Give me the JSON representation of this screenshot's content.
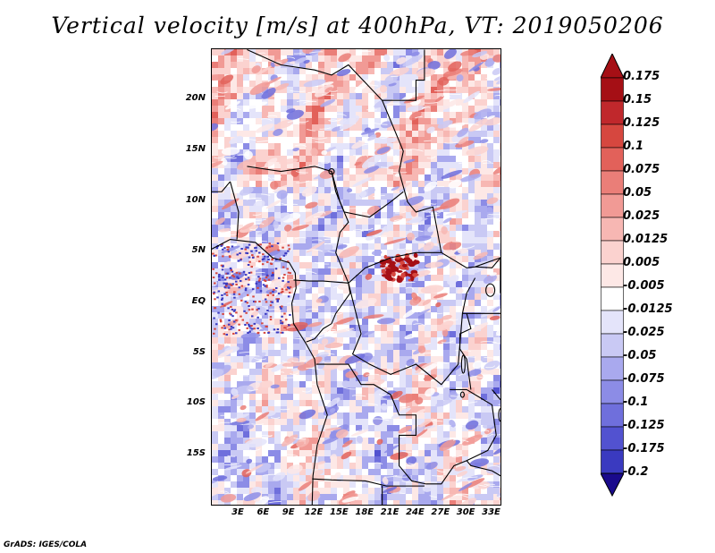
{
  "title": "Vertical velocity [m/s] at 400hPa, VT: 2019050206",
  "credit": "GrADS: IGES/COLA",
  "map": {
    "lat_range": [
      -20,
      25
    ],
    "lon_range": [
      -1,
      34
    ],
    "lat_labels": [
      {
        "lat": 20,
        "text": "20N"
      },
      {
        "lat": 15,
        "text": "15N"
      },
      {
        "lat": 10,
        "text": "10N"
      },
      {
        "lat": 5,
        "text": "5N"
      },
      {
        "lat": 0,
        "text": "EQ"
      },
      {
        "lat": -5,
        "text": "5S"
      },
      {
        "lat": -10,
        "text": "10S"
      },
      {
        "lat": -15,
        "text": "15S"
      }
    ],
    "lon_labels": [
      {
        "lon": 3,
        "text": "3E"
      },
      {
        "lon": 6,
        "text": "6E"
      },
      {
        "lon": 9,
        "text": "9E"
      },
      {
        "lon": 12,
        "text": "12E"
      },
      {
        "lon": 15,
        "text": "15E"
      },
      {
        "lon": 18,
        "text": "18E"
      },
      {
        "lon": 21,
        "text": "21E"
      },
      {
        "lon": 24,
        "text": "24E"
      },
      {
        "lon": 27,
        "text": "27E"
      },
      {
        "lon": 30,
        "text": "30E"
      },
      {
        "lon": 33,
        "text": "33E"
      }
    ]
  },
  "colorbar": {
    "levels": [
      {
        "label": "0.175",
        "color": "#a50f15"
      },
      {
        "label": "0.15",
        "color": "#c0282c"
      },
      {
        "label": "0.125",
        "color": "#d6473f"
      },
      {
        "label": "0.1",
        "color": "#e2615a"
      },
      {
        "label": "0.075",
        "color": "#ea7e78"
      },
      {
        "label": "0.05",
        "color": "#f19a95"
      },
      {
        "label": "0.025",
        "color": "#f7b7b3"
      },
      {
        "label": "0.0125",
        "color": "#fbd2cf"
      },
      {
        "label": "0.005",
        "color": "#fde8e6"
      },
      {
        "label": "-0.005",
        "color": "#ffffff"
      },
      {
        "label": "-0.0125",
        "color": "#e4e4fa"
      },
      {
        "label": "-0.025",
        "color": "#c9c9f4"
      },
      {
        "label": "-0.05",
        "color": "#a9a9ee"
      },
      {
        "label": "-0.075",
        "color": "#8c8ce6"
      },
      {
        "label": "-0.1",
        "color": "#6f6fdc"
      },
      {
        "label": "-0.125",
        "color": "#5252d0"
      },
      {
        "label": "-0.175",
        "color": "#3a3ac0"
      },
      {
        "label": "-0.2",
        "color": "#2424a8"
      }
    ],
    "top_arrow_color": "#a50f15",
    "bottom_arrow_color": "#1a0a8c"
  }
}
